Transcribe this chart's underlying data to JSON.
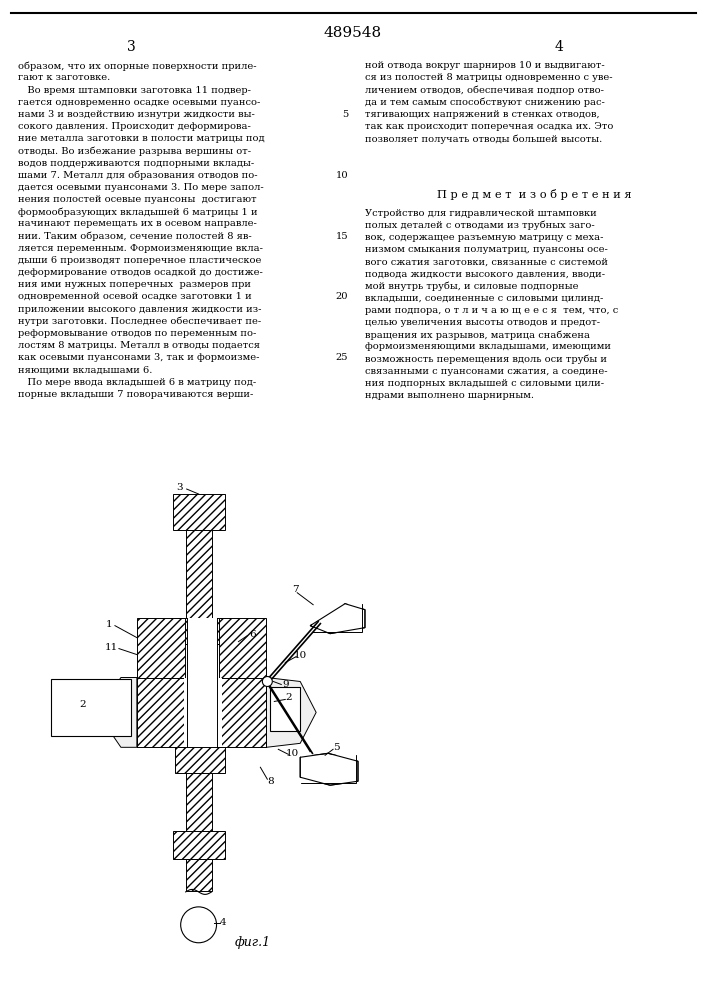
{
  "patent_number": "489548",
  "page_left": "3",
  "page_right": "4",
  "left_lines": [
    "образом, что их опорные поверхности приле-",
    "гают к заготовке.",
    "   Во время штамповки заготовка 11 подвер-",
    "гается одновременно осадке осевыми пуансо-",
    "нами 3 и воздействию изнутри жидкости вы-",
    "сокого давления. Происходит деформирова-",
    "ние металла заготовки в полости матрицы под",
    "отводы. Во избежание разрыва вершины от-",
    "водов поддерживаются подпорными вклады-",
    "шами 7. Металл для образования отводов по-",
    "дается осевыми пуансонами 3. По мере запол-",
    "нения полостей осевые пуансоны  достигают",
    "формообразующих вкладышей 6 матрицы 1 и",
    "начинают перемещать их в осевом направле-",
    "нии. Таким образом, сечение полостей 8 яв-",
    "ляется переменным. Формоизменяющие вкла-",
    "дыши 6 производят поперечное пластическое",
    "деформирование отводов осадкой до достиже-",
    "ния ими нужных поперечных  размеров при",
    "одновременной осевой осадке заготовки 1 и",
    "приложении высокого давления жидкости из-",
    "нутри заготовки. Последнее обеспечивает пе-",
    "реформовывание отводов по переменным по-",
    "лостям 8 матрицы. Металл в отводы подается",
    "как осевыми пуансонами 3, так и формоизме-",
    "няющими вкладышами 6.",
    "   По мере ввода вкладышей 6 в матрицу под-",
    "порные вкладыши 7 поворачиваются верши-"
  ],
  "line_num_indices": [
    4,
    9,
    14,
    19,
    24
  ],
  "line_num_values": [
    "5",
    "10",
    "15",
    "20",
    "25"
  ],
  "right_lines_top": [
    "ной отвода вокруг шарниров 10 и выдвигают-",
    "ся из полостей 8 матрицы одновременно с уве-",
    "личением отводов, обеспечивая подпор отво-",
    "да и тем самым способствуют снижению рас-",
    "тягивающих напряжений в стенках отводов,",
    "так как происходит поперечная осадка их. Это",
    "позволяет получать отводы большей высоты."
  ],
  "subject_title": "П р е д м е т  и з о б р е т е н и я",
  "right_lines_bottom": [
    "Устройство для гидравлической штамповки",
    "полых деталей с отводами из трубных заго-",
    "вок, содержащее разъемную матрицу с меха-",
    "низмом смыкания полуматриц, пуансоны осе-",
    "вого сжатия заготовки, связанные с системой",
    "подвода жидкости высокого давления, вводи-",
    "мой внутрь трубы, и силовые подпорные",
    "вкладыши, соединенные с силовыми цилинд-",
    "рами подпора, о т л и ч а ю щ е е с я  тем, что, с",
    "целью увеличения высоты отводов и предот-",
    "вращения их разрывов, матрица снабжена",
    "формоизменяющими вкладышами, имеющими",
    "возможность перемещения вдоль оси трубы и",
    "связанными с пуансонами сжатия, а соедине-",
    "ния подпорных вкладышей с силовыми цили-",
    "ндрами выполнено шарнирным."
  ],
  "fig_label": "фиг.1",
  "bg_color": "#ffffff",
  "text_color": "#000000",
  "line_color": "#000000"
}
